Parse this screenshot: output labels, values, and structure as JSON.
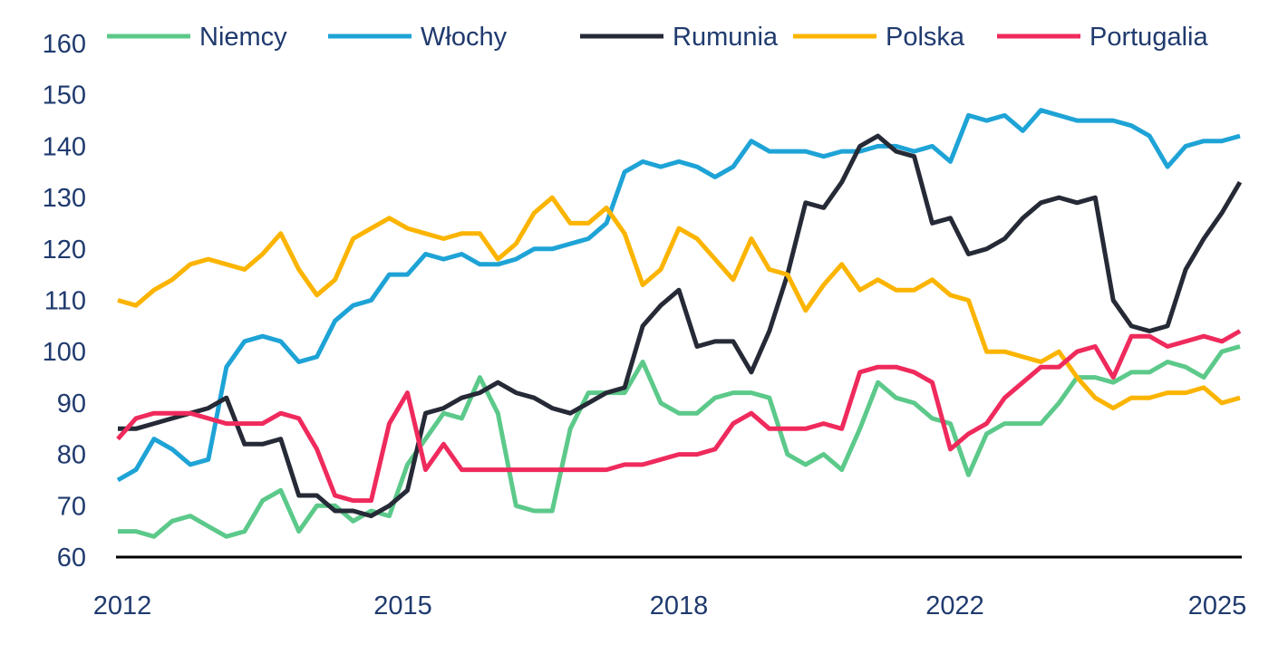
{
  "chart_data": {
    "type": "line",
    "title": "",
    "xlabel": "",
    "ylabel": "",
    "ylim": [
      60,
      160
    ],
    "y_ticks": [
      "60",
      "70",
      "80",
      "90",
      "100",
      "110",
      "120",
      "130",
      "140",
      "150",
      "160"
    ],
    "x_ticks": [
      {
        "label": "2012",
        "at": 0
      },
      {
        "label": "2015",
        "at": 15.5
      },
      {
        "label": "2018",
        "at": 30.75
      },
      {
        "label": "2022",
        "at": 46
      },
      {
        "label": "2025",
        "at": 60.5
      }
    ],
    "grid": false,
    "legend": "top",
    "series": [
      {
        "name": "Niemcy",
        "color": "#5cc98a",
        "values": [
          65,
          65,
          64,
          67,
          68,
          66,
          64,
          65,
          71,
          73,
          65,
          70,
          70,
          67,
          69,
          68,
          78,
          83,
          88,
          87,
          95,
          88,
          70,
          69,
          69,
          85,
          92,
          92,
          92,
          98,
          90,
          88,
          88,
          91,
          92,
          92,
          91,
          80,
          78,
          80,
          77,
          85,
          94,
          91,
          90,
          87,
          86,
          76,
          84,
          86,
          86,
          86,
          90,
          95,
          95,
          94,
          96,
          96,
          98,
          97,
          95,
          100,
          101
        ]
      },
      {
        "name": "Włochy",
        "color": "#1ea3d6",
        "values": [
          75,
          77,
          83,
          81,
          78,
          79,
          97,
          102,
          103,
          102,
          98,
          99,
          106,
          109,
          110,
          115,
          115,
          119,
          118,
          119,
          117,
          117,
          118,
          120,
          120,
          121,
          122,
          125,
          135,
          137,
          136,
          137,
          136,
          134,
          136,
          141,
          139,
          139,
          139,
          138,
          139,
          139,
          140,
          140,
          139,
          140,
          137,
          146,
          145,
          146,
          143,
          147,
          146,
          145,
          145,
          145,
          144,
          142,
          136,
          140,
          141,
          141,
          142
        ]
      },
      {
        "name": "Rumunia",
        "color": "#262a36",
        "values": [
          85,
          85,
          86,
          87,
          88,
          89,
          91,
          82,
          82,
          83,
          72,
          72,
          69,
          69,
          68,
          70,
          73,
          88,
          89,
          91,
          92,
          94,
          92,
          91,
          89,
          88,
          90,
          92,
          93,
          105,
          109,
          112,
          101,
          102,
          102,
          96,
          104,
          115,
          129,
          128,
          133,
          140,
          142,
          139,
          138,
          125,
          126,
          119,
          120,
          122,
          126,
          129,
          130,
          129,
          130,
          110,
          105,
          104,
          105,
          116,
          122,
          127,
          133
        ]
      },
      {
        "name": "Polska",
        "color": "#fbb400",
        "values": [
          110,
          109,
          112,
          114,
          117,
          118,
          117,
          116,
          119,
          123,
          116,
          111,
          114,
          122,
          124,
          126,
          124,
          123,
          122,
          123,
          123,
          118,
          121,
          127,
          130,
          125,
          125,
          128,
          123,
          113,
          116,
          124,
          122,
          118,
          114,
          122,
          116,
          115,
          108,
          113,
          117,
          112,
          114,
          112,
          112,
          114,
          111,
          110,
          100,
          100,
          99,
          98,
          100,
          95,
          91,
          89,
          91,
          91,
          92,
          92,
          93,
          90,
          91
        ]
      },
      {
        "name": "Portugalia",
        "color": "#ef2a5c",
        "values": [
          83,
          87,
          88,
          88,
          88,
          87,
          86,
          86,
          86,
          88,
          87,
          81,
          72,
          71,
          71,
          86,
          92,
          77,
          82,
          77,
          77,
          77,
          77,
          77,
          77,
          77,
          77,
          77,
          78,
          78,
          79,
          80,
          80,
          81,
          86,
          88,
          85,
          85,
          85,
          86,
          85,
          96,
          97,
          97,
          96,
          94,
          81,
          84,
          86,
          91,
          94,
          97,
          97,
          100,
          101,
          95,
          103,
          103,
          101,
          102,
          103,
          102,
          104
        ]
      }
    ]
  }
}
